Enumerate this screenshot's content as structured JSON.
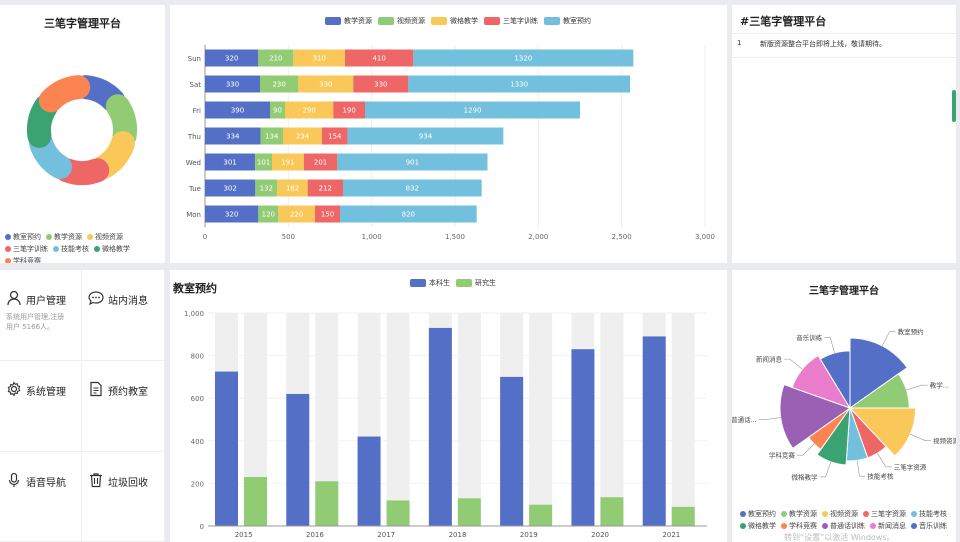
{
  "left_top": {
    "title": "三笔字管理平台",
    "legend": [
      "教室预约",
      "教学资源",
      "视频资源",
      "三笔字训练",
      "技能考核",
      "微格教学",
      "学科竞赛"
    ],
    "colors": [
      "#5470c6",
      "#91cc75",
      "#fac858",
      "#ee6666",
      "#73c0de",
      "#3ba272",
      "#fc8452"
    ]
  },
  "bar_chart": {
    "chart_data": {
      "type": "bar",
      "orientation": "horizontal-stacked",
      "categories": [
        "Mon",
        "Tue",
        "Wed",
        "Thu",
        "Fri",
        "Sat",
        "Sun"
      ],
      "series": [
        {
          "name": "教学资源",
          "color": "#5470c6",
          "values": [
            320,
            302,
            301,
            334,
            390,
            330,
            320
          ]
        },
        {
          "name": "视频资源",
          "color": "#91cc75",
          "values": [
            120,
            132,
            101,
            134,
            90,
            230,
            210
          ]
        },
        {
          "name": "微格教学",
          "color": "#fac858",
          "values": [
            220,
            182,
            191,
            234,
            290,
            330,
            310
          ]
        },
        {
          "name": "三笔字训练",
          "color": "#ee6666",
          "values": [
            150,
            212,
            201,
            154,
            190,
            330,
            410
          ]
        },
        {
          "name": "教室预约",
          "color": "#73c0de",
          "values": [
            820,
            832,
            901,
            934,
            1290,
            1330,
            1320
          ]
        }
      ],
      "xlim": [
        0,
        3000
      ],
      "x_ticks": [
        "0",
        "500",
        "1,000",
        "1,500",
        "2,000",
        "2,500",
        "3,000"
      ]
    }
  },
  "news": {
    "title": "#三笔字管理平台",
    "items": [
      {
        "index": "1",
        "text": "新版资源整合平台即将上线，敬请期待。"
      }
    ]
  },
  "grid_menu": {
    "items": [
      {
        "label": "用户管理",
        "desc": "系统用户管理,注册用户 5166人。",
        "icon": "user-icon"
      },
      {
        "label": "站内消息",
        "desc": "",
        "icon": "message-icon"
      },
      {
        "label": "系统管理",
        "desc": "",
        "icon": "gear-icon"
      },
      {
        "label": "预约教室",
        "desc": "",
        "icon": "document-icon"
      },
      {
        "label": "语音导航",
        "desc": "",
        "icon": "microphone-icon"
      },
      {
        "label": "垃圾回收",
        "desc": "",
        "icon": "trash-icon"
      }
    ]
  },
  "column_chart": {
    "chart_data": {
      "type": "bar",
      "title": "教室预约",
      "categories": [
        "2015",
        "2016",
        "2017",
        "2018",
        "2019",
        "2020",
        "2021"
      ],
      "series": [
        {
          "name": "本科生",
          "color": "#5470c6",
          "values": [
            725,
            620,
            420,
            930,
            700,
            830,
            890
          ]
        },
        {
          "name": "研究生",
          "color": "#91cc75",
          "values": [
            230,
            210,
            120,
            130,
            100,
            135,
            90
          ]
        }
      ],
      "ylim": [
        0,
        1000
      ],
      "y_ticks": [
        "0",
        "200",
        "400",
        "600",
        "800",
        "1,000"
      ]
    }
  },
  "pie_chart": {
    "chart_data": {
      "type": "pie",
      "title": "三笔字管理平台",
      "slices": [
        {
          "name": "教室预约",
          "value": 14,
          "color": "#5470c6",
          "label": "教室预约"
        },
        {
          "name": "教学资源",
          "value": 9,
          "color": "#91cc75",
          "label": "教学..."
        },
        {
          "name": "视频资源",
          "value": 12,
          "color": "#fac858",
          "label": "视频资源"
        },
        {
          "name": "三笔字资源",
          "value": 6,
          "color": "#ee6666",
          "label": "三笔字资源"
        },
        {
          "name": "技能考核",
          "value": 6,
          "color": "#73c0de",
          "label": "技能考核"
        },
        {
          "name": "微格教学",
          "value": 8,
          "color": "#3ba272",
          "label": "微格教学"
        },
        {
          "name": "学科竞赛",
          "value": 5,
          "color": "#fc8452",
          "label": "学科竞赛"
        },
        {
          "name": "普通话",
          "value": 14,
          "color": "#9a60b4",
          "label": "普通话..."
        },
        {
          "name": "新闻消息",
          "value": 10,
          "color": "#ea7ccc",
          "label": "新闻消息"
        },
        {
          "name": "音乐训练",
          "value": 8,
          "color": "#5470c6",
          "label": "音乐训练"
        }
      ],
      "legend": [
        "教室预约",
        "教学资源",
        "视频资源",
        "三笔字资源",
        "技能考核",
        "微格教学",
        "学科竞赛",
        "普通话训练",
        "新闻消息",
        "音乐训练"
      ]
    }
  },
  "watermark": "转到“设置”以激活 Windows。"
}
